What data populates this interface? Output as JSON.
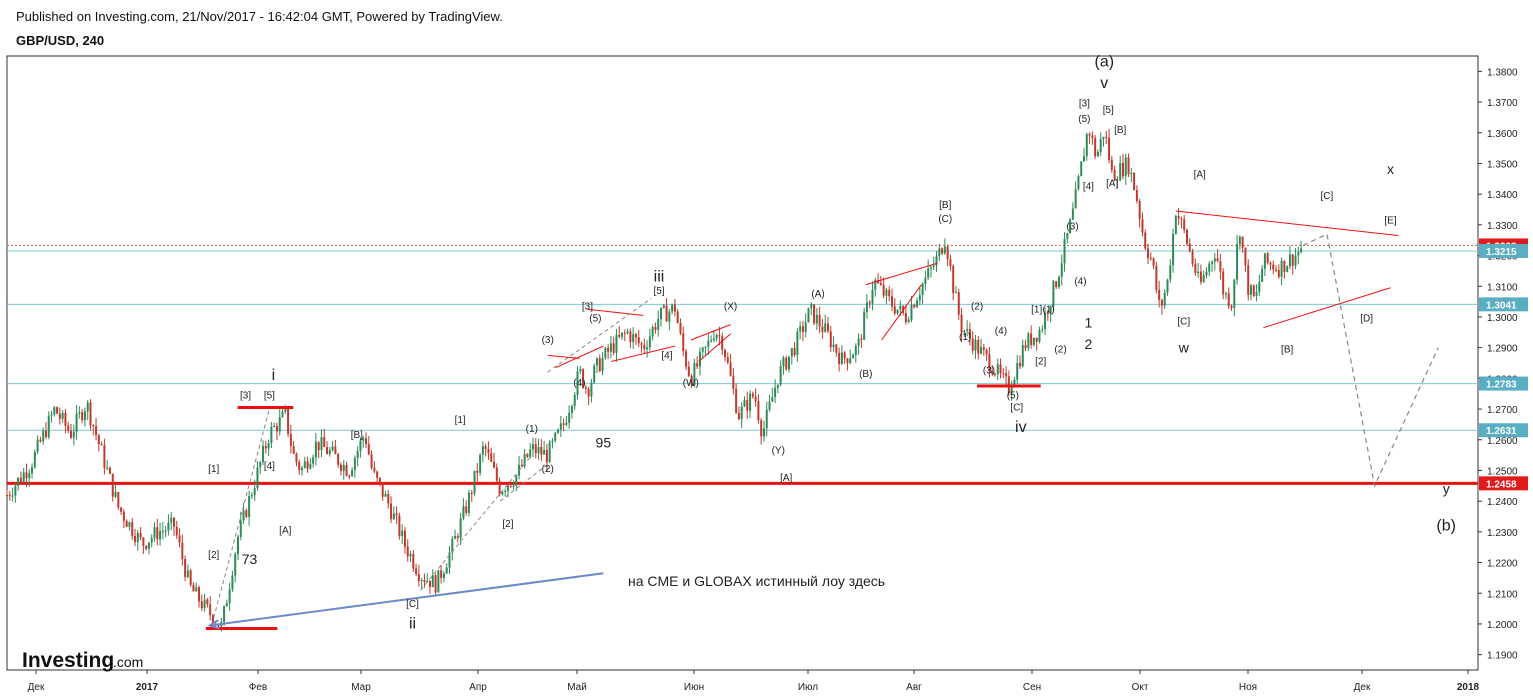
{
  "header": {
    "published": "Published on Investing.com, 21/Nov/2017 - 16:42:04 GMT, Powered by TradingView.",
    "symbol": "GBP/USD, 240"
  },
  "logo": {
    "main": "Investing",
    "suffix": ".com"
  },
  "colors": {
    "up": "#2e8b57",
    "down": "#c0392b",
    "red_line": "#ee1111",
    "blue_level": "#7ec8d8",
    "arrow": "#6a8ac8",
    "dashed": "#888888",
    "dotted": "#cc6644"
  },
  "note": "на CME и GLOBAX  истинный лоу здесь",
  "chart_data": {
    "type": "candlestick",
    "y_axis": {
      "min": 1.185,
      "max": 1.385,
      "ticks": [
        "1.1900",
        "1.2000",
        "1.2100",
        "1.2200",
        "1.2300",
        "1.2400",
        "1.2500",
        "1.2600",
        "1.2700",
        "1.2800",
        "1.2900",
        "1.3000",
        "1.3100",
        "1.3200",
        "1.3300",
        "1.3400",
        "1.3500",
        "1.3600",
        "1.3700",
        "1.3800"
      ]
    },
    "x_axis": {
      "labels": [
        "Дек",
        "2017",
        "Фев",
        "Мар",
        "Апр",
        "Май",
        "Июн",
        "Июл",
        "Авг",
        "Сен",
        "Окт",
        "Ноя",
        "Дек",
        "2018"
      ]
    },
    "price_path": [
      [
        0,
        1.242
      ],
      [
        3,
        1.252
      ],
      [
        6,
        1.27
      ],
      [
        8,
        1.262
      ],
      [
        10,
        1.272
      ],
      [
        12,
        1.255
      ],
      [
        14,
        1.238
      ],
      [
        17,
        1.226
      ],
      [
        19,
        1.23
      ],
      [
        21,
        1.232
      ],
      [
        23,
        1.212
      ],
      [
        25,
        1.205
      ],
      [
        27,
        1.199
      ],
      [
        29,
        1.228
      ],
      [
        31,
        1.245
      ],
      [
        33,
        1.262
      ],
      [
        35,
        1.268
      ],
      [
        36,
        1.255
      ],
      [
        37,
        1.25
      ],
      [
        39,
        1.259
      ],
      [
        41,
        1.255
      ],
      [
        43,
        1.25
      ],
      [
        45,
        1.262
      ],
      [
        46,
        1.249
      ],
      [
        48,
        1.239
      ],
      [
        50,
        1.226
      ],
      [
        52,
        1.216
      ],
      [
        54,
        1.213
      ],
      [
        56,
        1.225
      ],
      [
        58,
        1.24
      ],
      [
        60,
        1.258
      ],
      [
        61,
        1.251
      ],
      [
        62,
        1.244
      ],
      [
        64,
        1.248
      ],
      [
        66,
        1.257
      ],
      [
        68,
        1.255
      ],
      [
        70,
        1.265
      ],
      [
        72,
        1.282
      ],
      [
        73,
        1.276
      ],
      [
        74,
        1.283
      ],
      [
        76,
        1.29
      ],
      [
        78,
        1.295
      ],
      [
        80,
        1.29
      ],
      [
        82,
        1.3
      ],
      [
        84,
        1.303
      ],
      [
        85,
        1.289
      ],
      [
        86,
        1.28
      ],
      [
        88,
        1.29
      ],
      [
        89,
        1.296
      ],
      [
        90,
        1.292
      ],
      [
        92,
        1.268
      ],
      [
        94,
        1.275
      ],
      [
        95,
        1.262
      ],
      [
        97,
        1.281
      ],
      [
        99,
        1.29
      ],
      [
        101,
        1.302
      ],
      [
        103,
        1.295
      ],
      [
        105,
        1.286
      ],
      [
        107,
        1.29
      ],
      [
        109,
        1.312
      ],
      [
        111,
        1.305
      ],
      [
        113,
        1.3
      ],
      [
        115,
        1.31
      ],
      [
        117,
        1.319
      ],
      [
        118,
        1.326
      ],
      [
        119,
        1.31
      ],
      [
        120,
        1.297
      ],
      [
        122,
        1.29
      ],
      [
        124,
        1.284
      ],
      [
        125,
        1.28
      ],
      [
        126,
        1.277
      ],
      [
        128,
        1.291
      ],
      [
        130,
        1.296
      ],
      [
        132,
        1.312
      ],
      [
        134,
        1.333
      ],
      [
        136,
        1.362
      ],
      [
        137,
        1.352
      ],
      [
        138,
        1.361
      ],
      [
        139,
        1.346
      ],
      [
        141,
        1.35
      ],
      [
        142,
        1.34
      ],
      [
        143,
        1.325
      ],
      [
        144,
        1.318
      ],
      [
        145,
        1.302
      ],
      [
        146,
        1.312
      ],
      [
        147,
        1.335
      ],
      [
        148,
        1.328
      ],
      [
        150,
        1.31
      ],
      [
        152,
        1.322
      ],
      [
        153,
        1.308
      ],
      [
        154,
        1.305
      ],
      [
        155,
        1.33
      ],
      [
        156,
        1.31
      ],
      [
        157,
        1.305
      ],
      [
        158,
        1.318
      ],
      [
        160,
        1.316
      ],
      [
        162,
        1.32
      ],
      [
        163,
        1.323
      ]
    ],
    "levels": [
      1.3233,
      1.3215,
      1.3041,
      1.2783,
      1.2631,
      1.2458
    ],
    "level_labels": [
      "1.3233",
      "1.3215",
      "1.3041",
      "1.2783",
      "1.2631",
      "1.2458"
    ],
    "projection": [
      [
        163,
        1.3233
      ],
      [
        166,
        1.327
      ],
      [
        172,
        1.245
      ],
      [
        180,
        1.29
      ]
    ],
    "wave_labels": [
      {
        "t": "(a)",
        "x": 138,
        "y": 1.3815,
        "size": "big"
      },
      {
        "t": "v",
        "x": 138,
        "y": 1.3745,
        "size": "big"
      },
      {
        "t": "[3]",
        "x": 135.5,
        "y": 1.3685
      },
      {
        "t": "[5]",
        "x": 138.5,
        "y": 1.3665
      },
      {
        "t": "(5)",
        "x": 135.5,
        "y": 1.3635
      },
      {
        "t": "[B]",
        "x": 140,
        "y": 1.36
      },
      {
        "t": "[4]",
        "x": 136,
        "y": 1.3415
      },
      {
        "t": "[A]",
        "x": 139,
        "y": 1.3425
      },
      {
        "t": "(3)",
        "x": 134,
        "y": 1.3285
      },
      {
        "t": "(4)",
        "x": 135,
        "y": 1.3105
      },
      {
        "t": "[B]",
        "x": 118,
        "y": 1.3355
      },
      {
        "t": "(C)",
        "x": 118,
        "y": 1.331
      },
      {
        "t": "(A)",
        "x": 102,
        "y": 1.3065
      },
      {
        "t": "(B)",
        "x": 108,
        "y": 1.2805
      },
      {
        "t": "(X)",
        "x": 91,
        "y": 1.3025
      },
      {
        "t": "(W)",
        "x": 86,
        "y": 1.2775
      },
      {
        "t": "(Y)",
        "x": 97,
        "y": 1.2555
      },
      {
        "t": "[A]",
        "x": 98,
        "y": 1.2465
      },
      {
        "t": "[3]",
        "x": 73,
        "y": 1.3025
      },
      {
        "t": "(5)",
        "x": 74,
        "y": 1.2985
      },
      {
        "t": "[5]",
        "x": 82,
        "y": 1.3075
      },
      {
        "t": "(3)",
        "x": 68,
        "y": 1.2915
      },
      {
        "t": "(4)",
        "x": 72,
        "y": 1.2775
      },
      {
        "t": "[4]",
        "x": 83,
        "y": 1.2865
      },
      {
        "t": "iii",
        "x": 82,
        "y": 1.3115,
        "size": "big"
      },
      {
        "t": "95",
        "x": 75,
        "y": 1.2575,
        "size": "note"
      },
      {
        "t": "(1)",
        "x": 66,
        "y": 1.2625
      },
      {
        "t": "(2)",
        "x": 68,
        "y": 1.2495
      },
      {
        "t": "[1]",
        "x": 57,
        "y": 1.2655
      },
      {
        "t": "[2]",
        "x": 63,
        "y": 1.2315
      },
      {
        "t": "[C]",
        "x": 51,
        "y": 1.2055
      },
      {
        "t": "ii",
        "x": 51,
        "y": 1.1985,
        "size": "big"
      },
      {
        "t": "[B]",
        "x": 44,
        "y": 1.2605
      },
      {
        "t": "[A]",
        "x": 35,
        "y": 1.2295
      },
      {
        "t": "[3]",
        "x": 30,
        "y": 1.2735
      },
      {
        "t": "[5]",
        "x": 33,
        "y": 1.2735
      },
      {
        "t": "i",
        "x": 33.5,
        "y": 1.2795,
        "size": "big"
      },
      {
        "t": "[4]",
        "x": 33,
        "y": 1.2505
      },
      {
        "t": "[1]",
        "x": 26,
        "y": 1.2495
      },
      {
        "t": "[2]",
        "x": 26,
        "y": 1.2215
      },
      {
        "t": "73",
        "x": 30.5,
        "y": 1.2195,
        "size": "note"
      },
      {
        "t": "[1]",
        "x": 129.5,
        "y": 1.3015
      },
      {
        "t": "(1)",
        "x": 131,
        "y": 1.3015
      },
      {
        "t": "(2)",
        "x": 122,
        "y": 1.3025
      },
      {
        "t": "(1)",
        "x": 120.5,
        "y": 1.2925
      },
      {
        "t": "(4)",
        "x": 125,
        "y": 1.2945
      },
      {
        "t": "(2)",
        "x": 132.5,
        "y": 1.2885
      },
      {
        "t": "[2]",
        "x": 130,
        "y": 1.2845
      },
      {
        "t": "(3)",
        "x": 123.5,
        "y": 1.2815
      },
      {
        "t": "(5)",
        "x": 126.5,
        "y": 1.2735
      },
      {
        "t": "[C]",
        "x": 127,
        "y": 1.2695
      },
      {
        "t": "iv",
        "x": 127.5,
        "y": 1.2625,
        "size": "big"
      },
      {
        "t": "1",
        "x": 136,
        "y": 1.2965,
        "size": "note"
      },
      {
        "t": "2",
        "x": 136,
        "y": 1.2895,
        "size": "note"
      },
      {
        "t": "[A]",
        "x": 150,
        "y": 1.3455
      },
      {
        "t": "[C]",
        "x": 148,
        "y": 1.2975
      },
      {
        "t": "w",
        "x": 148,
        "y": 1.2885,
        "size": "note"
      },
      {
        "t": "[B]",
        "x": 161,
        "y": 1.2885
      },
      {
        "t": "[C]",
        "x": 166,
        "y": 1.3385
      },
      {
        "t": "x",
        "x": 174,
        "y": 1.3465,
        "size": "note"
      },
      {
        "t": "[E]",
        "x": 174,
        "y": 1.3305
      },
      {
        "t": "[D]",
        "x": 171,
        "y": 1.2985
      },
      {
        "t": "y",
        "x": 181,
        "y": 1.2425,
        "size": "note"
      },
      {
        "t": "(b)",
        "x": 181,
        "y": 1.2305,
        "size": "big"
      }
    ]
  }
}
